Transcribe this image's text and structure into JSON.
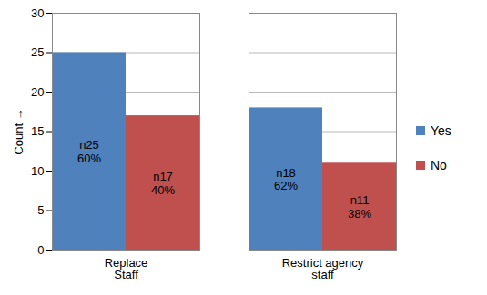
{
  "chart_data": {
    "type": "bar",
    "categories": [
      "Replace Staff",
      "Restrict agency staff"
    ],
    "series": [
      {
        "name": "Yes",
        "color": "#4f81bd",
        "values": [
          25,
          18
        ],
        "value_labels": [
          "n25\n60%",
          "n18\n62%"
        ]
      },
      {
        "name": "No",
        "color": "#c0504d",
        "values": [
          17,
          11
        ],
        "value_labels": [
          "n17\n40%",
          "n11\n38%"
        ]
      }
    ],
    "y_label": "Count",
    "ylim": [
      0,
      30
    ],
    "yticks": [
      0,
      5,
      10,
      15,
      20,
      25,
      30
    ],
    "grid": true,
    "legend": "right",
    "data_labels": true
  }
}
